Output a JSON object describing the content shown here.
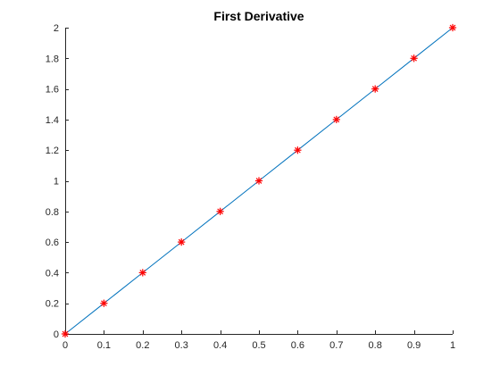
{
  "chart_data": {
    "type": "line",
    "title": "First Derivative",
    "xlabel": "",
    "ylabel": "",
    "xlim": [
      0,
      1
    ],
    "ylim": [
      0,
      2
    ],
    "grid": false,
    "legend": "none",
    "x_ticks": [
      "0",
      "0.1",
      "0.2",
      "0.3",
      "0.4",
      "0.5",
      "0.6",
      "0.7",
      "0.8",
      "0.9",
      "1"
    ],
    "x_tick_values": [
      0,
      0.1,
      0.2,
      0.3,
      0.4,
      0.5,
      0.6,
      0.7,
      0.8,
      0.9,
      1
    ],
    "y_ticks": [
      "0",
      "0.2",
      "0.4",
      "0.6",
      "0.8",
      "1",
      "1.2",
      "1.4",
      "1.6",
      "1.8",
      "2"
    ],
    "y_tick_values": [
      0,
      0.2,
      0.4,
      0.6,
      0.8,
      1,
      1.2,
      1.4,
      1.6,
      1.8,
      2
    ],
    "series": [
      {
        "style": "line",
        "color": "#0072bd",
        "x": [
          0,
          0.1,
          0.2,
          0.3,
          0.4,
          0.5,
          0.6,
          0.7,
          0.8,
          0.9,
          1
        ],
        "y": [
          0,
          0.2,
          0.4,
          0.6,
          0.8,
          1.0,
          1.2,
          1.4,
          1.6,
          1.8,
          2.0
        ]
      },
      {
        "style": "markers",
        "marker": "asterisk",
        "color": "#ff0000",
        "x": [
          0,
          0.1,
          0.2,
          0.3,
          0.4,
          0.5,
          0.6,
          0.7,
          0.8,
          0.9,
          1
        ],
        "y": [
          0,
          0.2,
          0.4,
          0.6,
          0.8,
          1.0,
          1.2,
          1.4,
          1.6,
          1.8,
          2.0
        ]
      }
    ]
  }
}
